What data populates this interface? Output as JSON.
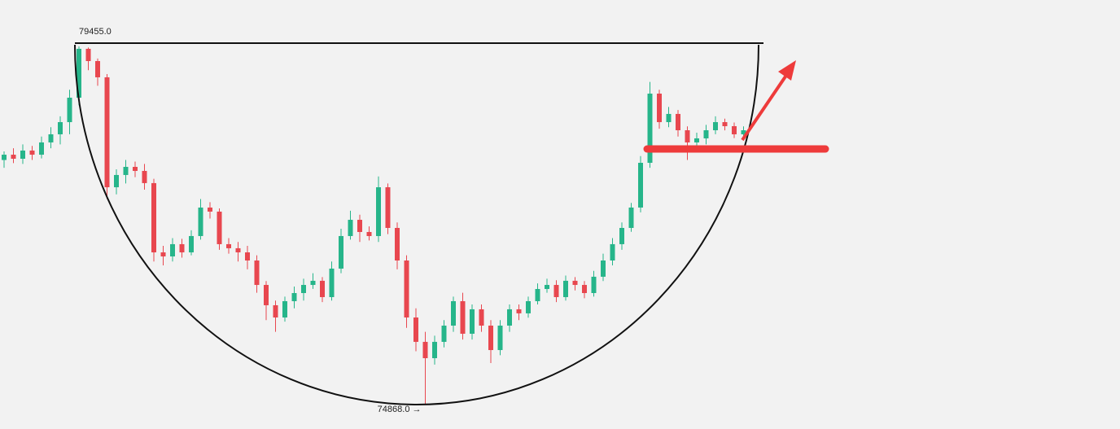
{
  "chart_data": {
    "type": "candlestick",
    "up_color": "#26b58a",
    "down_color": "#e8474f",
    "ylim": [
      74555,
      80049
    ],
    "candles": [
      [
        78000,
        78110,
        77900,
        78068
      ],
      [
        78068,
        78150,
        77960,
        78016
      ],
      [
        78016,
        78200,
        77950,
        78121
      ],
      [
        78121,
        78180,
        78000,
        78068
      ],
      [
        78068,
        78300,
        78020,
        78225
      ],
      [
        78225,
        78420,
        78150,
        78329
      ],
      [
        78329,
        78560,
        78200,
        78485
      ],
      [
        78485,
        78900,
        78330,
        78798
      ],
      [
        78798,
        79455,
        78700,
        79424
      ],
      [
        79424,
        79440,
        79150,
        79267
      ],
      [
        79267,
        79300,
        78950,
        79059
      ],
      [
        79059,
        79100,
        77500,
        77651
      ],
      [
        77651,
        77880,
        77560,
        77808
      ],
      [
        77808,
        78000,
        77700,
        77912
      ],
      [
        77912,
        77980,
        77780,
        77860
      ],
      [
        77860,
        77950,
        77620,
        77704
      ],
      [
        77704,
        77760,
        76700,
        76817
      ],
      [
        76817,
        76900,
        76650,
        76765
      ],
      [
        76765,
        77000,
        76700,
        76922
      ],
      [
        76922,
        76990,
        76750,
        76817
      ],
      [
        76817,
        77100,
        76780,
        77026
      ],
      [
        77026,
        77500,
        76980,
        77391
      ],
      [
        77391,
        77460,
        77250,
        77339
      ],
      [
        77339,
        77380,
        76850,
        76922
      ],
      [
        76922,
        77000,
        76800,
        76870
      ],
      [
        76870,
        76950,
        76700,
        76817
      ],
      [
        76817,
        76900,
        76600,
        76713
      ],
      [
        76713,
        76780,
        76300,
        76400
      ],
      [
        76400,
        76450,
        75950,
        76140
      ],
      [
        76140,
        76200,
        75800,
        75983
      ],
      [
        75983,
        76250,
        75930,
        76192
      ],
      [
        76192,
        76380,
        76100,
        76296
      ],
      [
        76296,
        76480,
        76200,
        76400
      ],
      [
        76400,
        76550,
        76350,
        76453
      ],
      [
        76453,
        76500,
        76180,
        76244
      ],
      [
        76244,
        76700,
        76200,
        76609
      ],
      [
        76609,
        77120,
        76550,
        77026
      ],
      [
        77026,
        77350,
        76980,
        77234
      ],
      [
        77234,
        77300,
        76950,
        77078
      ],
      [
        77078,
        77150,
        76970,
        77026
      ],
      [
        77026,
        77790,
        76950,
        77651
      ],
      [
        77651,
        77700,
        77050,
        77130
      ],
      [
        77130,
        77200,
        76600,
        76713
      ],
      [
        76713,
        76780,
        75850,
        75983
      ],
      [
        75983,
        76100,
        75550,
        75671
      ],
      [
        75671,
        75800,
        74868,
        75462
      ],
      [
        75462,
        75750,
        75380,
        75671
      ],
      [
        75671,
        75950,
        75600,
        75879
      ],
      [
        75879,
        76250,
        75800,
        76192
      ],
      [
        76192,
        76300,
        75700,
        75775
      ],
      [
        75775,
        76150,
        75700,
        76088
      ],
      [
        76088,
        76150,
        75800,
        75879
      ],
      [
        75879,
        75950,
        75400,
        75566
      ],
      [
        75566,
        75950,
        75500,
        75879
      ],
      [
        75879,
        76150,
        75800,
        76088
      ],
      [
        76088,
        76150,
        75950,
        76036
      ],
      [
        76036,
        76250,
        75980,
        76192
      ],
      [
        76192,
        76420,
        76150,
        76348
      ],
      [
        76348,
        76480,
        76300,
        76400
      ],
      [
        76400,
        76460,
        76180,
        76244
      ],
      [
        76244,
        76520,
        76200,
        76453
      ],
      [
        76453,
        76500,
        76330,
        76400
      ],
      [
        76400,
        76450,
        76230,
        76296
      ],
      [
        76296,
        76580,
        76250,
        76505
      ],
      [
        76505,
        76800,
        76450,
        76713
      ],
      [
        76713,
        77000,
        76650,
        76922
      ],
      [
        76922,
        77200,
        76850,
        77130
      ],
      [
        77130,
        77450,
        77080,
        77391
      ],
      [
        77391,
        78050,
        77330,
        77964
      ],
      [
        77964,
        79000,
        77900,
        78850
      ],
      [
        78850,
        78900,
        78400,
        78485
      ],
      [
        78485,
        78680,
        78420,
        78590
      ],
      [
        78590,
        78640,
        78300,
        78381
      ],
      [
        78381,
        78430,
        78000,
        78225
      ],
      [
        78225,
        78350,
        78150,
        78277
      ],
      [
        78277,
        78450,
        78200,
        78381
      ],
      [
        78381,
        78560,
        78330,
        78485
      ],
      [
        78485,
        78530,
        78380,
        78433
      ],
      [
        78433,
        78480,
        78280,
        78329
      ],
      [
        78329,
        78430,
        78290,
        78381
      ]
    ],
    "high_label": {
      "value": 79455,
      "label": "79455.0"
    },
    "low_label": {
      "value": 74868,
      "label": "74868.0 →"
    }
  }
}
